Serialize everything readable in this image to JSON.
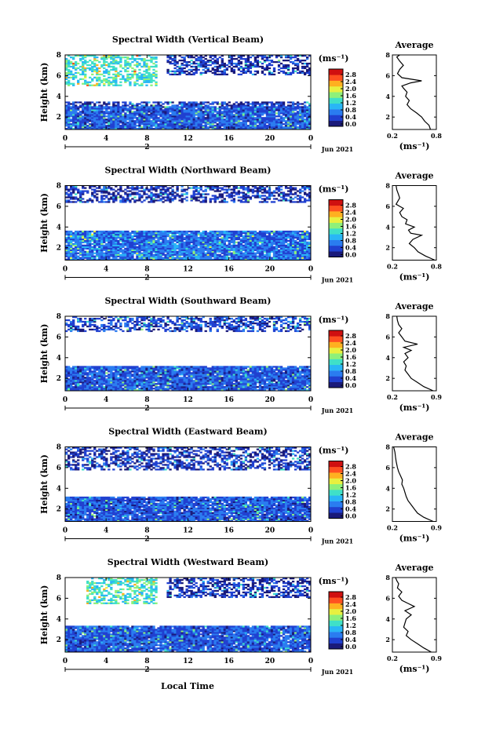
{
  "figure": {
    "xlabel": "Local Time",
    "date_label": "Jun 2021",
    "colorbar_unit": "(ms⁻¹)",
    "colorbar_ticks": [
      "0.0",
      "0.4",
      "0.8",
      "1.2",
      "1.6",
      "2.0",
      "2.4",
      "2.8"
    ],
    "average_title": "Average",
    "average_xunit": "(ms⁻¹)",
    "day_label": "2"
  },
  "chart_data": [
    {
      "type": "heatmap",
      "title": "Spectral Width (Vertical Beam)",
      "ylabel": "Height (km)",
      "x_ticks": [
        "0",
        "4",
        "8",
        "12",
        "16",
        "20",
        "0"
      ],
      "y_ticks": [
        "2",
        "4",
        "6",
        "8"
      ],
      "xlim": [
        0,
        24
      ],
      "ylim": [
        0.8,
        8.0
      ],
      "colorbar_range": [
        0.0,
        2.8
      ],
      "color_scale": [
        "#1a1a7a",
        "#2040d0",
        "#2a7cf0",
        "#29b6f6",
        "#3fe0c8",
        "#8ef07a",
        "#e8f040",
        "#ffb020",
        "#ff5020",
        "#d01010"
      ],
      "echo_layers": [
        {
          "h": [
            0.8,
            3.0
          ],
          "level": 0.5
        },
        {
          "h": [
            3.0,
            3.5
          ],
          "level": 0.3
        },
        {
          "h": [
            6.0,
            8.0
          ],
          "level": 0.3,
          "t": [
            10,
            24
          ]
        },
        {
          "h": [
            5.0,
            8.0
          ],
          "level": 1.2,
          "t": [
            0,
            9
          ]
        }
      ],
      "average": {
        "xlim": [
          0.2,
          0.8
        ],
        "x_ticks": [
          "0.2",
          "0.8"
        ],
        "y_ticks": [
          "2",
          "4",
          "6",
          "8"
        ],
        "x": [
          0.72,
          0.7,
          0.64,
          0.6,
          0.53,
          0.45,
          0.4,
          0.43,
          0.38,
          0.4,
          0.35,
          0.33,
          0.45,
          0.6,
          0.33,
          0.27,
          0.3,
          0.35,
          0.3,
          0.28,
          0.26,
          0.3
        ],
        "y": [
          0.8,
          1.2,
          1.6,
          2.0,
          2.4,
          2.8,
          3.2,
          3.6,
          4.0,
          4.4,
          4.8,
          5.0,
          5.3,
          5.5,
          5.8,
          6.2,
          6.6,
          7.0,
          7.4,
          7.6,
          7.8,
          8.0
        ]
      }
    },
    {
      "type": "heatmap",
      "title": "Spectral Width (Northward Beam)",
      "ylabel": "Height (km)",
      "x_ticks": [
        "0",
        "4",
        "8",
        "12",
        "16",
        "20",
        "0"
      ],
      "y_ticks": [
        "2",
        "4",
        "6",
        "8"
      ],
      "xlim": [
        0,
        24
      ],
      "ylim": [
        0.8,
        8.0
      ],
      "colorbar_range": [
        0.0,
        2.8
      ],
      "color_scale": [
        "#1a1a7a",
        "#2040d0",
        "#2a7cf0",
        "#29b6f6",
        "#3fe0c8",
        "#8ef07a",
        "#e8f040",
        "#ffb020",
        "#ff5020",
        "#d01010"
      ],
      "echo_layers": [
        {
          "h": [
            0.8,
            3.6
          ],
          "level": 0.6
        },
        {
          "h": [
            6.3,
            8.0
          ],
          "level": 0.3
        }
      ],
      "average": {
        "xlim": [
          0.2,
          0.8
        ],
        "x_ticks": [
          "0.2",
          "0.8"
        ],
        "y_ticks": [
          "2",
          "4",
          "6",
          "8"
        ],
        "x": [
          0.78,
          0.65,
          0.55,
          0.5,
          0.43,
          0.48,
          0.6,
          0.45,
          0.42,
          0.5,
          0.38,
          0.4,
          0.33,
          0.3,
          0.35,
          0.25,
          0.3,
          0.28,
          0.26,
          0.25
        ],
        "y": [
          0.8,
          1.2,
          1.6,
          2.0,
          2.4,
          2.8,
          3.2,
          3.4,
          3.7,
          4.0,
          4.3,
          4.7,
          5.0,
          5.4,
          5.8,
          6.2,
          6.8,
          7.2,
          7.6,
          8.0
        ]
      }
    },
    {
      "type": "heatmap",
      "title": "Spectral Width (Southward Beam)",
      "ylabel": "Height (km)",
      "x_ticks": [
        "0",
        "4",
        "8",
        "12",
        "16",
        "20",
        "0"
      ],
      "y_ticks": [
        "2",
        "4",
        "6",
        "8"
      ],
      "xlim": [
        0,
        24
      ],
      "ylim": [
        0.8,
        8.0
      ],
      "colorbar_range": [
        0.0,
        2.8
      ],
      "color_scale": [
        "#1a1a7a",
        "#2040d0",
        "#2a7cf0",
        "#29b6f6",
        "#3fe0c8",
        "#8ef07a",
        "#e8f040",
        "#ffb020",
        "#ff5020",
        "#d01010"
      ],
      "echo_layers": [
        {
          "h": [
            0.8,
            3.2
          ],
          "level": 0.5
        },
        {
          "h": [
            6.5,
            8.0
          ],
          "level": 0.4
        }
      ],
      "average": {
        "xlim": [
          0.2,
          0.9
        ],
        "x_ticks": [
          "0.2",
          "0.9"
        ],
        "y_ticks": [
          "2",
          "4",
          "6",
          "8"
        ],
        "x": [
          0.85,
          0.7,
          0.6,
          0.5,
          0.45,
          0.4,
          0.42,
          0.38,
          0.45,
          0.4,
          0.5,
          0.38,
          0.6,
          0.4,
          0.35,
          0.3,
          0.35,
          0.3,
          0.28,
          0.27
        ],
        "y": [
          0.8,
          1.2,
          1.6,
          2.0,
          2.4,
          2.8,
          3.2,
          3.6,
          4.0,
          4.4,
          4.7,
          5.0,
          5.3,
          5.6,
          6.0,
          6.4,
          6.8,
          7.2,
          7.6,
          8.0
        ]
      }
    },
    {
      "type": "heatmap",
      "title": "Spectral Width (Eastward Beam)",
      "ylabel": "Height (km)",
      "x_ticks": [
        "0",
        "4",
        "8",
        "12",
        "16",
        "20",
        "0"
      ],
      "y_ticks": [
        "2",
        "4",
        "6",
        "8"
      ],
      "xlim": [
        0,
        24
      ],
      "ylim": [
        0.8,
        8.0
      ],
      "colorbar_range": [
        0.0,
        2.8
      ],
      "color_scale": [
        "#1a1a7a",
        "#2040d0",
        "#2a7cf0",
        "#29b6f6",
        "#3fe0c8",
        "#8ef07a",
        "#e8f040",
        "#ffb020",
        "#ff5020",
        "#d01010"
      ],
      "echo_layers": [
        {
          "h": [
            0.8,
            3.2
          ],
          "level": 0.5
        },
        {
          "h": [
            5.8,
            8.0
          ],
          "level": 0.3
        }
      ],
      "average": {
        "xlim": [
          0.2,
          0.9
        ],
        "x_ticks": [
          "0.2",
          "0.9"
        ],
        "y_ticks": [
          "2",
          "4",
          "6",
          "8"
        ],
        "x": [
          0.85,
          0.7,
          0.6,
          0.55,
          0.5,
          0.45,
          0.42,
          0.4,
          0.38,
          0.35,
          0.36,
          0.33,
          0.3,
          0.28,
          0.26,
          0.25,
          0.24,
          0.22
        ],
        "y": [
          0.8,
          1.2,
          1.6,
          2.0,
          2.4,
          2.8,
          3.2,
          3.6,
          4.0,
          4.4,
          4.8,
          5.2,
          5.6,
          6.0,
          6.6,
          7.0,
          7.5,
          8.0
        ]
      }
    },
    {
      "type": "heatmap",
      "title": "Spectral Width (Westward Beam)",
      "ylabel": "Height (km)",
      "x_ticks": [
        "0",
        "4",
        "8",
        "12",
        "16",
        "20",
        "0"
      ],
      "y_ticks": [
        "2",
        "4",
        "6",
        "8"
      ],
      "xlim": [
        0,
        24
      ],
      "ylim": [
        0.8,
        8.0
      ],
      "colorbar_range": [
        0.0,
        2.8
      ],
      "color_scale": [
        "#1a1a7a",
        "#2040d0",
        "#2a7cf0",
        "#29b6f6",
        "#3fe0c8",
        "#8ef07a",
        "#e8f040",
        "#ffb020",
        "#ff5020",
        "#d01010"
      ],
      "echo_layers": [
        {
          "h": [
            0.8,
            3.4
          ],
          "level": 0.5
        },
        {
          "h": [
            6.0,
            8.0
          ],
          "level": 0.3,
          "t": [
            10,
            24
          ]
        },
        {
          "h": [
            5.5,
            8.0
          ],
          "level": 1.2,
          "t": [
            2,
            9
          ]
        }
      ],
      "average": {
        "xlim": [
          0.2,
          0.9
        ],
        "x_ticks": [
          "0.2",
          "0.9"
        ],
        "y_ticks": [
          "2",
          "4",
          "6",
          "8"
        ],
        "x": [
          0.82,
          0.7,
          0.6,
          0.5,
          0.42,
          0.45,
          0.38,
          0.4,
          0.42,
          0.5,
          0.4,
          0.55,
          0.45,
          0.35,
          0.3,
          0.35,
          0.28,
          0.3,
          0.27,
          0.25
        ],
        "y": [
          0.8,
          1.2,
          1.6,
          2.0,
          2.4,
          2.8,
          3.2,
          3.6,
          4.0,
          4.4,
          4.8,
          5.2,
          5.5,
          5.8,
          6.2,
          6.6,
          7.0,
          7.4,
          7.7,
          8.0
        ]
      }
    }
  ]
}
